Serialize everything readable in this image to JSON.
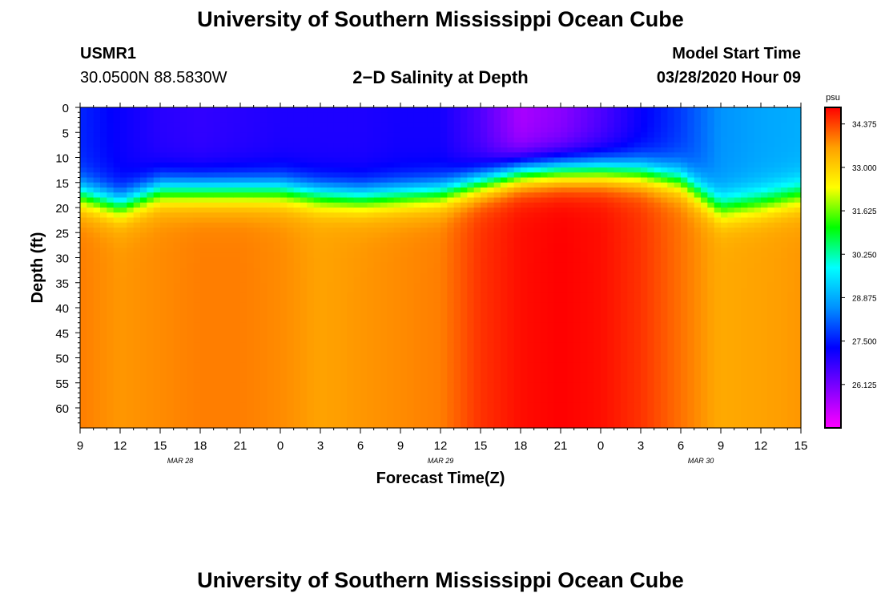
{
  "header": {
    "title": "University of Southern Mississippi Ocean Cube",
    "station_id": "USMR1",
    "station_coords": "30.0500N 88.5830W",
    "start_label": "Model Start Time",
    "start_value": "03/28/2020 Hour 09"
  },
  "footer": {
    "title": "University of Southern Mississippi Ocean Cube"
  },
  "chart_data": {
    "type": "heatmap",
    "title": "2−D Salinity at Depth",
    "xlabel": "Forecast Time(Z)",
    "ylabel": "Depth (ft)",
    "x_ticks": [
      "9",
      "12",
      "15",
      "18",
      "21",
      "0",
      "3",
      "6",
      "9",
      "12",
      "15",
      "18",
      "21",
      "0",
      "3",
      "6",
      "9",
      "12",
      "15"
    ],
    "x_hours": [
      9,
      12,
      15,
      18,
      21,
      24,
      27,
      30,
      33,
      36,
      39,
      42,
      45,
      48,
      51,
      54,
      57,
      60,
      63
    ],
    "x_range_hours": [
      9,
      63
    ],
    "date_labels": [
      {
        "hour": 16.5,
        "text": "MAR 28"
      },
      {
        "hour": 36,
        "text": "MAR 29"
      },
      {
        "hour": 55.5,
        "text": "MAR 30"
      }
    ],
    "y_ticks": [
      0,
      5,
      10,
      15,
      20,
      25,
      30,
      35,
      40,
      45,
      50,
      55,
      60
    ],
    "y_range": [
      0,
      64
    ],
    "y_reversed": true,
    "colorbar": {
      "unit": "psu",
      "ticks": [
        34.375,
        33.0,
        31.625,
        30.25,
        28.875,
        27.5,
        26.125
      ],
      "tick_labels": [
        "34.375",
        "33.000",
        "31.625",
        "30.250",
        "28.875",
        "27.500",
        "26.125"
      ],
      "range": [
        24.75,
        34.9
      ],
      "colors": [
        "#ff00ff",
        "#8000ff",
        "#0000ff",
        "#0090ff",
        "#00ffff",
        "#00ff00",
        "#ffff00",
        "#ffa000",
        "#ff0000"
      ]
    },
    "salinity_profile": {
      "hours": [
        9,
        12,
        15,
        18,
        21,
        24,
        27,
        30,
        33,
        36,
        39,
        42,
        45,
        48,
        51,
        54,
        57,
        60,
        63
      ],
      "surface_psu": [
        27.6,
        27.2,
        26.9,
        26.8,
        26.9,
        27.0,
        27.0,
        27.0,
        27.1,
        27.1,
        26.5,
        25.6,
        25.9,
        26.5,
        27.2,
        27.8,
        28.6,
        28.8,
        28.9
      ],
      "halocline_depth_ft": [
        17.5,
        19.5,
        16.5,
        16.5,
        16.5,
        16.5,
        17.5,
        18,
        17.5,
        17,
        15,
        13,
        12.5,
        12.5,
        13,
        14.5,
        20,
        19,
        17.5
      ],
      "deep_psu": [
        33.9,
        33.7,
        33.8,
        33.9,
        33.9,
        33.8,
        33.6,
        33.7,
        33.8,
        33.9,
        34.5,
        34.8,
        34.9,
        34.8,
        34.5,
        34.0,
        33.5,
        33.6,
        33.7
      ]
    }
  }
}
